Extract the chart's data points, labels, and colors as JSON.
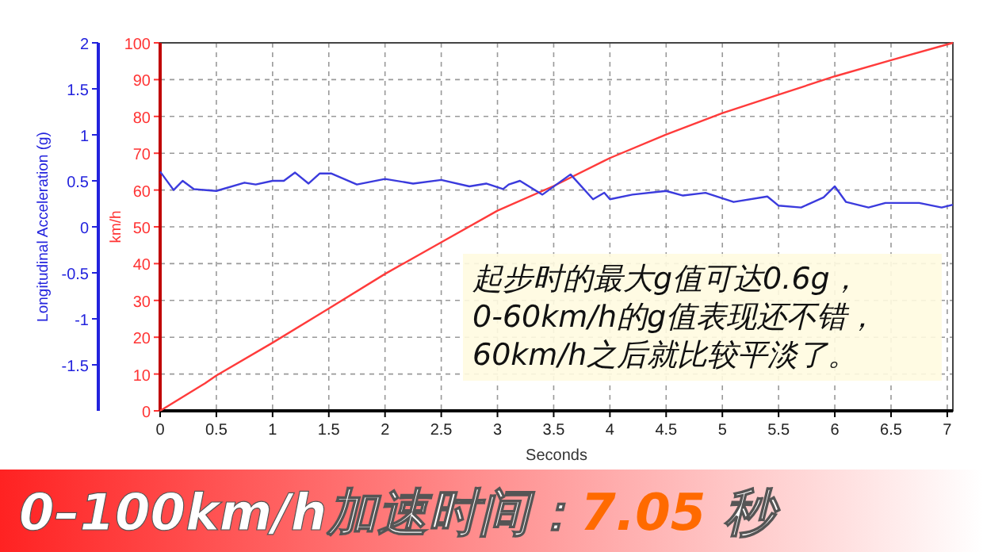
{
  "chart_data": {
    "type": "line",
    "xlabel": "Seconds",
    "ylabel": "km/h",
    "y2label": "Longitudinal Acceleration (g)",
    "xlim": [
      0,
      7.05
    ],
    "xticks": [
      0,
      0.5,
      1,
      1.5,
      2,
      2.5,
      3,
      3.5,
      4,
      4.5,
      5,
      5.5,
      6,
      6.5,
      7
    ],
    "ylim": [
      0,
      100
    ],
    "yticks": [
      0,
      10,
      20,
      30,
      40,
      50,
      60,
      70,
      80,
      90,
      100
    ],
    "y2lim": [
      -2,
      2
    ],
    "y2ticks": [
      -1.5,
      -1,
      -0.5,
      0,
      0.5,
      1,
      1.5,
      2
    ],
    "grid": true,
    "series": [
      {
        "color": "#ff3b3b",
        "x": [
          0,
          0.4,
          0.5,
          1,
          1.5,
          2,
          2.5,
          3,
          3.5,
          4,
          4.5,
          5,
          5.5,
          6,
          6.5,
          7.05
        ],
        "values": [
          0,
          7.5,
          9.6,
          18.5,
          27.8,
          37.2,
          45.8,
          54.4,
          61.1,
          68.7,
          75.1,
          80.9,
          85.9,
          90.9,
          95.3,
          100
        ]
      },
      {
        "color": "#3b3bdd",
        "axis": "y2",
        "x": [
          0,
          0.12,
          0.2,
          0.3,
          0.5,
          0.75,
          0.85,
          1,
          1.1,
          1.2,
          1.32,
          1.42,
          1.52,
          1.75,
          2,
          2.25,
          2.5,
          2.75,
          2.9,
          3.05,
          3.1,
          3.2,
          3.4,
          3.65,
          3.85,
          3.95,
          4,
          4.2,
          4.5,
          4.65,
          4.85,
          5.1,
          5.4,
          5.5,
          5.7,
          5.9,
          6,
          6.1,
          6.3,
          6.45,
          6.75,
          6.95,
          7.05
        ],
        "values": [
          0.6,
          0.4,
          0.5,
          0.41,
          0.39,
          0.48,
          0.46,
          0.5,
          0.5,
          0.59,
          0.47,
          0.58,
          0.58,
          0.46,
          0.52,
          0.47,
          0.51,
          0.44,
          0.47,
          0.41,
          0.46,
          0.5,
          0.35,
          0.57,
          0.3,
          0.37,
          0.3,
          0.35,
          0.39,
          0.34,
          0.37,
          0.27,
          0.33,
          0.23,
          0.21,
          0.32,
          0.44,
          0.27,
          0.21,
          0.26,
          0.26,
          0.21,
          0.24
        ]
      }
    ],
    "annotations": [
      "起步时的最大g值可达0.6g，\n0-60km/h的g值表现还不错，\n60km/h之后就比较平淡了。",
      "0–100km/h加速时间：7.05 秒"
    ]
  }
}
